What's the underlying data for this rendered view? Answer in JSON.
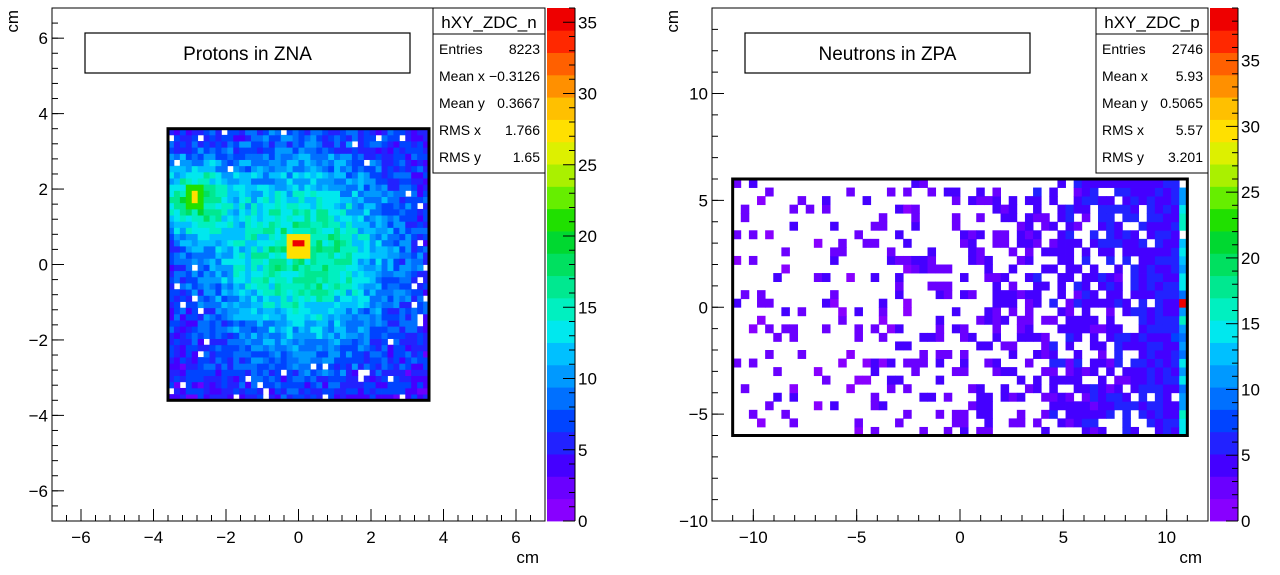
{
  "chart_data": [
    {
      "type": "heatmap",
      "xlabel": "cm",
      "ylabel": "cm",
      "xlim": [
        -6.8,
        6.8
      ],
      "ylim": [
        -6.8,
        6.8
      ],
      "x_ticks": [
        "−6",
        "−4",
        "−2",
        "0",
        "2",
        "4",
        "6"
      ],
      "y_ticks": [
        "−6",
        "−4",
        "−2",
        "0",
        "2",
        "4",
        "6"
      ],
      "x_tick_values": [
        -6,
        -4,
        -2,
        0,
        2,
        4,
        6
      ],
      "y_tick_values": [
        -6,
        -4,
        -2,
        0,
        2,
        4,
        6
      ],
      "detector_region": {
        "x": [
          -3.6,
          3.6
        ],
        "y": [
          -3.6,
          3.6
        ]
      },
      "bins": {
        "nx": 44,
        "ny": 44
      },
      "hot_spots": [
        {
          "x": 0.0,
          "y": 0.5,
          "z": 36
        },
        {
          "x": -2.8,
          "y": 1.8,
          "z": 28
        }
      ],
      "annotation": "Protons in ZNA",
      "stats": {
        "name": "hXY_ZDC_n",
        "rows": [
          {
            "label": "Entries",
            "value": "8223"
          },
          {
            "label": "Mean x",
            "value": "−0.3126"
          },
          {
            "label": "Mean y",
            "value": "0.3667"
          },
          {
            "label": "RMS x",
            "value": "1.766"
          },
          {
            "label": "RMS y",
            "value": "1.65"
          }
        ]
      },
      "colorbar": {
        "min": 0,
        "max": 36,
        "ticks": [
          "0",
          "5",
          "10",
          "15",
          "20",
          "25",
          "30",
          "35"
        ],
        "tick_values": [
          0,
          5,
          10,
          15,
          20,
          25,
          30,
          35
        ]
      }
    },
    {
      "type": "heatmap",
      "xlabel": "cm",
      "ylabel": "cm",
      "xlim": [
        -12,
        12
      ],
      "ylim": [
        -10,
        14
      ],
      "x_ticks": [
        "−10",
        "−5",
        "0",
        "5",
        "10"
      ],
      "y_ticks": [
        "−10",
        "−5",
        "0",
        "5",
        "10"
      ],
      "x_tick_values": [
        -10,
        -5,
        0,
        5,
        10
      ],
      "y_tick_values": [
        -10,
        -5,
        0,
        5,
        10
      ],
      "detector_region": {
        "x": [
          -11.0,
          11.0
        ],
        "y": [
          -6.0,
          6.0
        ]
      },
      "bins": {
        "nx": 56,
        "ny": 30
      },
      "hot_spots": [
        {
          "x": 10.9,
          "y": 0.3,
          "z": 38
        }
      ],
      "annotation": "Neutrons in ZPA",
      "stats": {
        "name": "hXY_ZDC_p",
        "rows": [
          {
            "label": "Entries",
            "value": "2746"
          },
          {
            "label": "Mean x",
            "value": "5.93"
          },
          {
            "label": "Mean y",
            "value": "0.5065"
          },
          {
            "label": "RMS x",
            "value": "5.57"
          },
          {
            "label": "RMS y",
            "value": "3.201"
          }
        ]
      },
      "colorbar": {
        "min": 0,
        "max": 39,
        "ticks": [
          "0",
          "5",
          "10",
          "15",
          "20",
          "25",
          "30",
          "35"
        ],
        "tick_values": [
          0,
          5,
          10,
          15,
          20,
          25,
          30,
          35
        ]
      }
    }
  ]
}
